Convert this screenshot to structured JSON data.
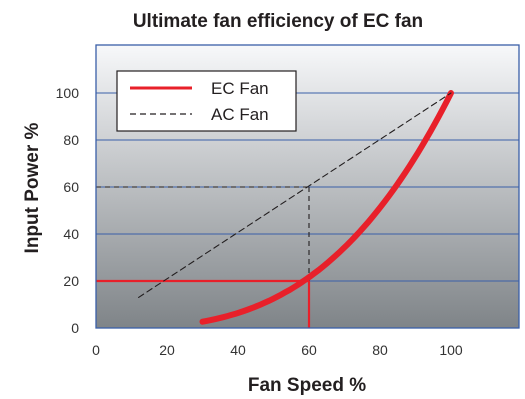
{
  "chart_data": {
    "type": "line",
    "title": "Ultimate fan efficiency of EC fan",
    "xlabel": "Fan Speed %",
    "ylabel": "Input Power %",
    "xlim": [
      0,
      120
    ],
    "ylim": [
      0,
      115
    ],
    "x_ticks": [
      "0",
      "20",
      "40",
      "60",
      "80",
      "100"
    ],
    "y_ticks": [
      "0",
      "20",
      "40",
      "60",
      "80",
      "100"
    ],
    "grid": "horizontal",
    "legend_position": "top-left",
    "series": [
      {
        "name": "EC Fan",
        "color": "#e8202a",
        "style": "solid",
        "x": [
          30,
          40,
          50,
          60,
          70,
          80,
          90,
          100
        ],
        "y": [
          2.7,
          6.4,
          12.5,
          21.6,
          34.3,
          51.2,
          72.9,
          100
        ]
      },
      {
        "name": "AC Fan",
        "color": "#231f20",
        "style": "dashed",
        "x": [
          12,
          100
        ],
        "y": [
          13,
          100
        ]
      }
    ],
    "annotations": [
      {
        "kind": "guide",
        "color": "#231f20",
        "style": "dashed",
        "x": 60,
        "y": 60
      },
      {
        "kind": "guide",
        "color": "#e8202a",
        "style": "solid",
        "x": 60,
        "y": 20
      }
    ],
    "colors": {
      "plot_gradient_top": "#f7f8fa",
      "plot_gradient_bottom": "#7f8488",
      "grid": "#3a5fa8",
      "frame": "#3a5fa8"
    }
  }
}
